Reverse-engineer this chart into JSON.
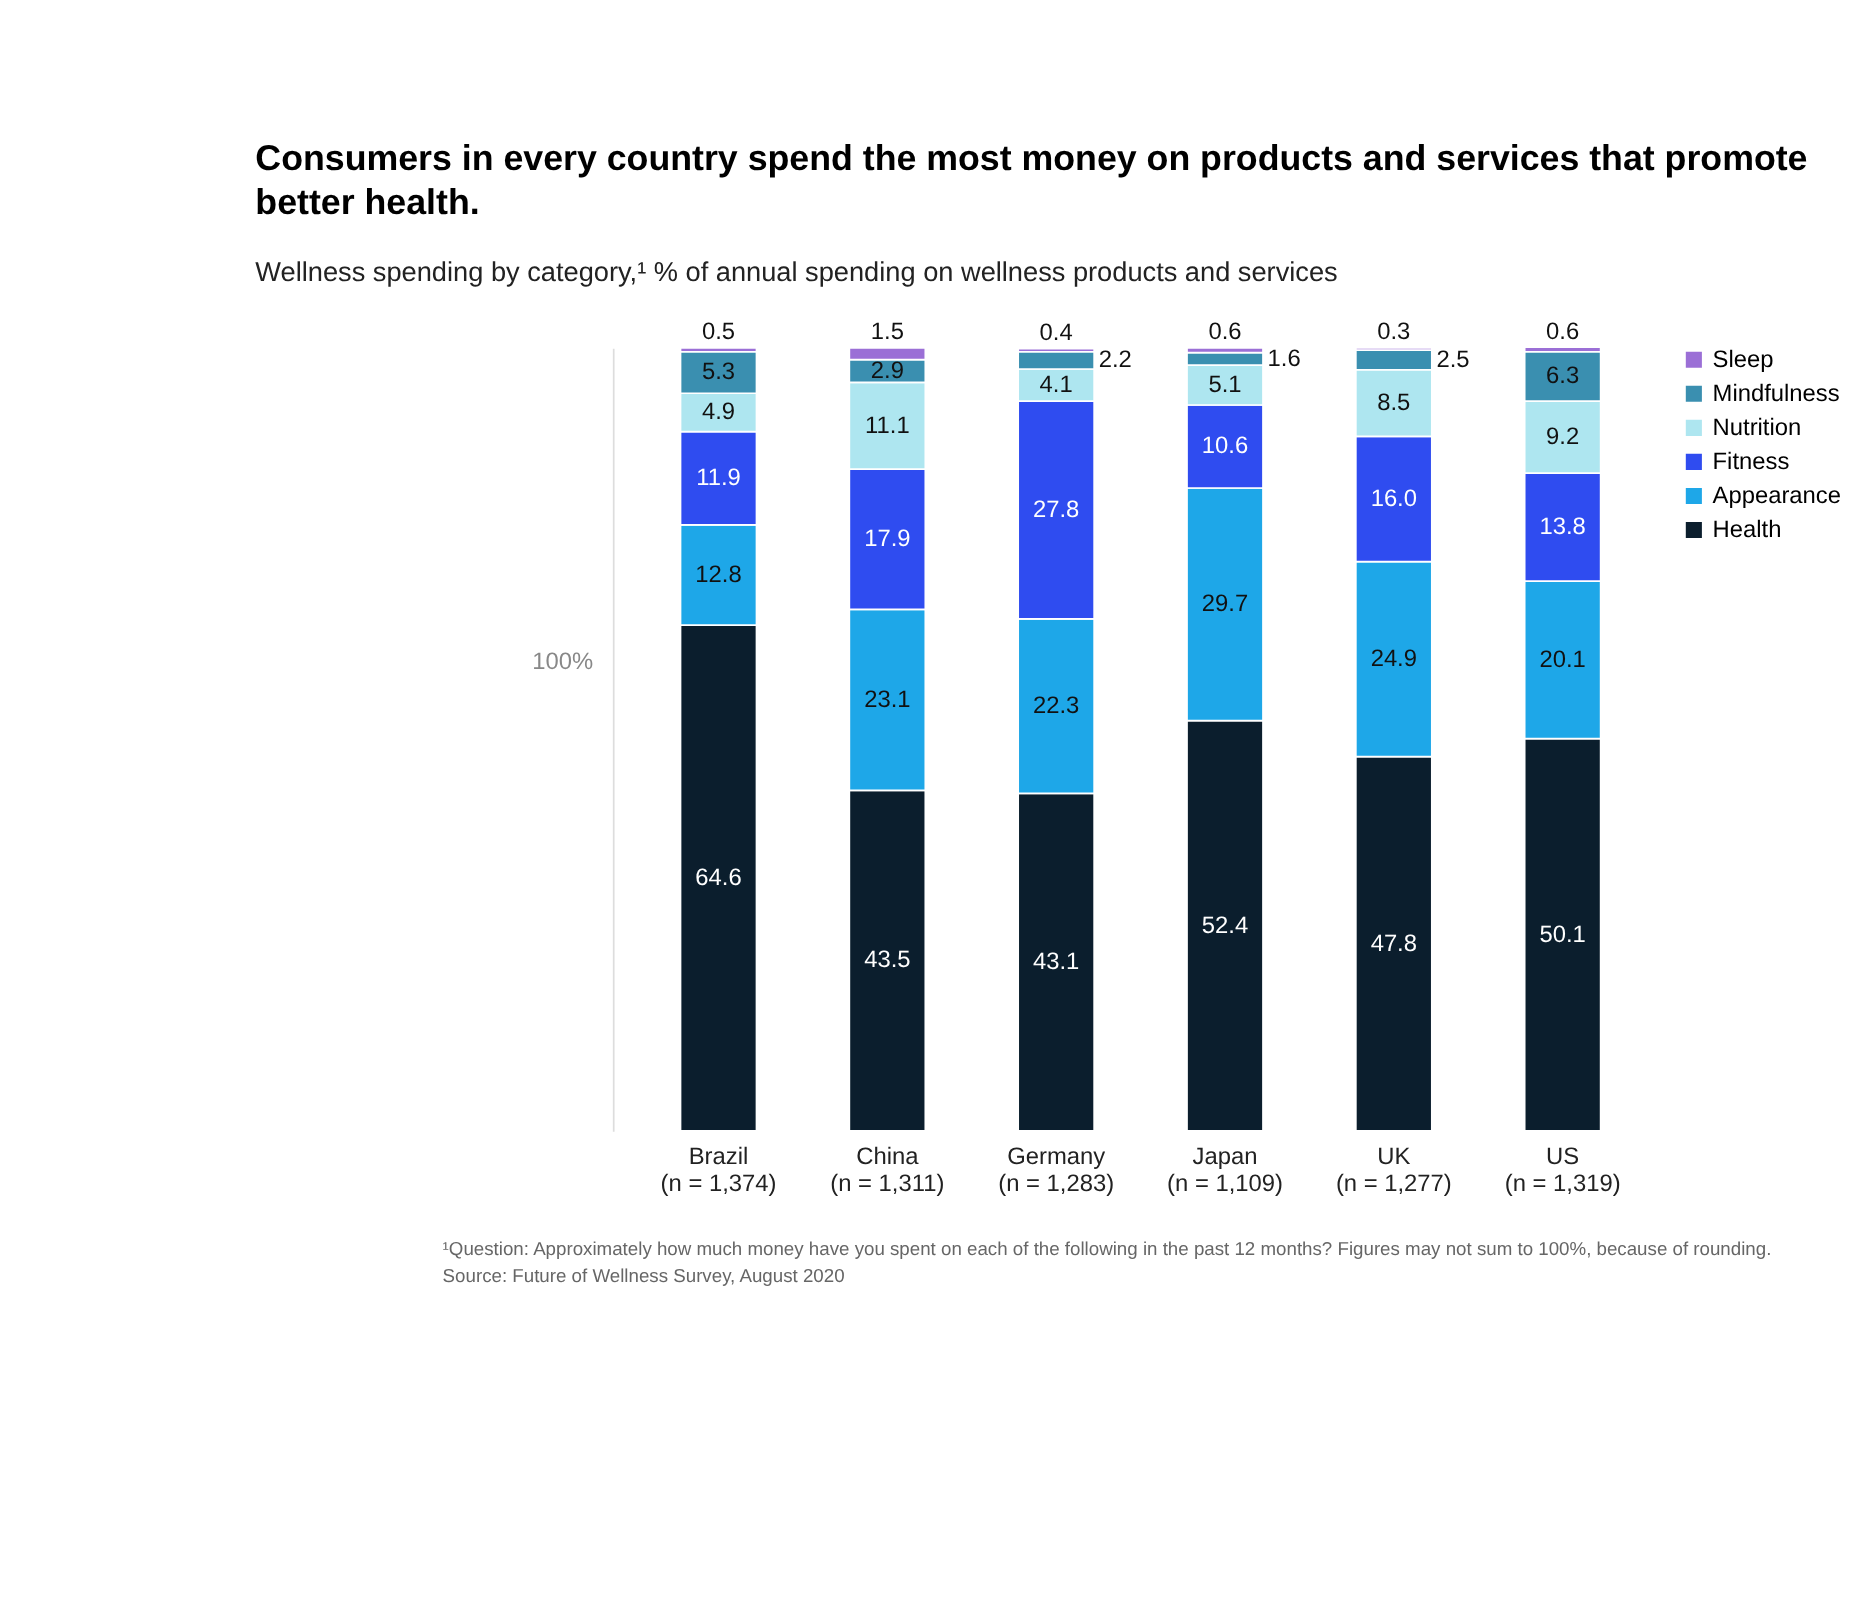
{
  "chart_data": {
    "type": "bar",
    "stacked": true,
    "data_labels": true,
    "title": "Consumers in every country spend the most money on products and services that promote better health.",
    "subtitle": "Wellness spending by category,¹ % of annual spending on wellness products and services",
    "ylabel": "100%",
    "categories": [
      "Brazil\n(n = 1,374)",
      "China\n(n = 1,311)",
      "Germany\n(n = 1,283)",
      "Japan\n(n = 1,109)",
      "UK\n(n = 1,277)",
      "US\n(n = 1,319)"
    ],
    "ylim": [
      0,
      100
    ],
    "series": [
      {
        "name": "Health",
        "color": "#0b1e2d",
        "values": [
          64.6,
          43.5,
          43.1,
          52.4,
          47.8,
          50.1
        ]
      },
      {
        "name": "Appearance",
        "color": "#1ea7e8",
        "values": [
          12.8,
          23.1,
          22.3,
          29.7,
          24.9,
          20.1
        ]
      },
      {
        "name": "Fitness",
        "color": "#2f4cf0",
        "values": [
          11.9,
          17.9,
          27.8,
          10.6,
          16.0,
          13.8
        ],
        "value_labels": [
          "11.9",
          "17.9",
          "27.8",
          "10.6",
          "16.0",
          "13.8"
        ]
      },
      {
        "name": "Nutrition",
        "color": "#aee6f0",
        "values": [
          4.9,
          11.1,
          4.1,
          5.1,
          8.5,
          9.2
        ]
      },
      {
        "name": "Mindfulness",
        "color": "#3a8fb0",
        "values": [
          5.3,
          2.9,
          2.2,
          1.6,
          2.5,
          6.3
        ]
      },
      {
        "name": "Sleep",
        "color": "#9b6fd6",
        "values": [
          0.5,
          1.5,
          0.4,
          0.6,
          0.3,
          0.6
        ]
      }
    ],
    "legend": "right",
    "grid": false,
    "annotations": [
      "¹Question: Approximately how much money have you spent on each of the following in the past 12 months? Figures may not sum to 100%, because of rounding.",
      "Source: Future of Wellness Survey, August 2020"
    ]
  }
}
